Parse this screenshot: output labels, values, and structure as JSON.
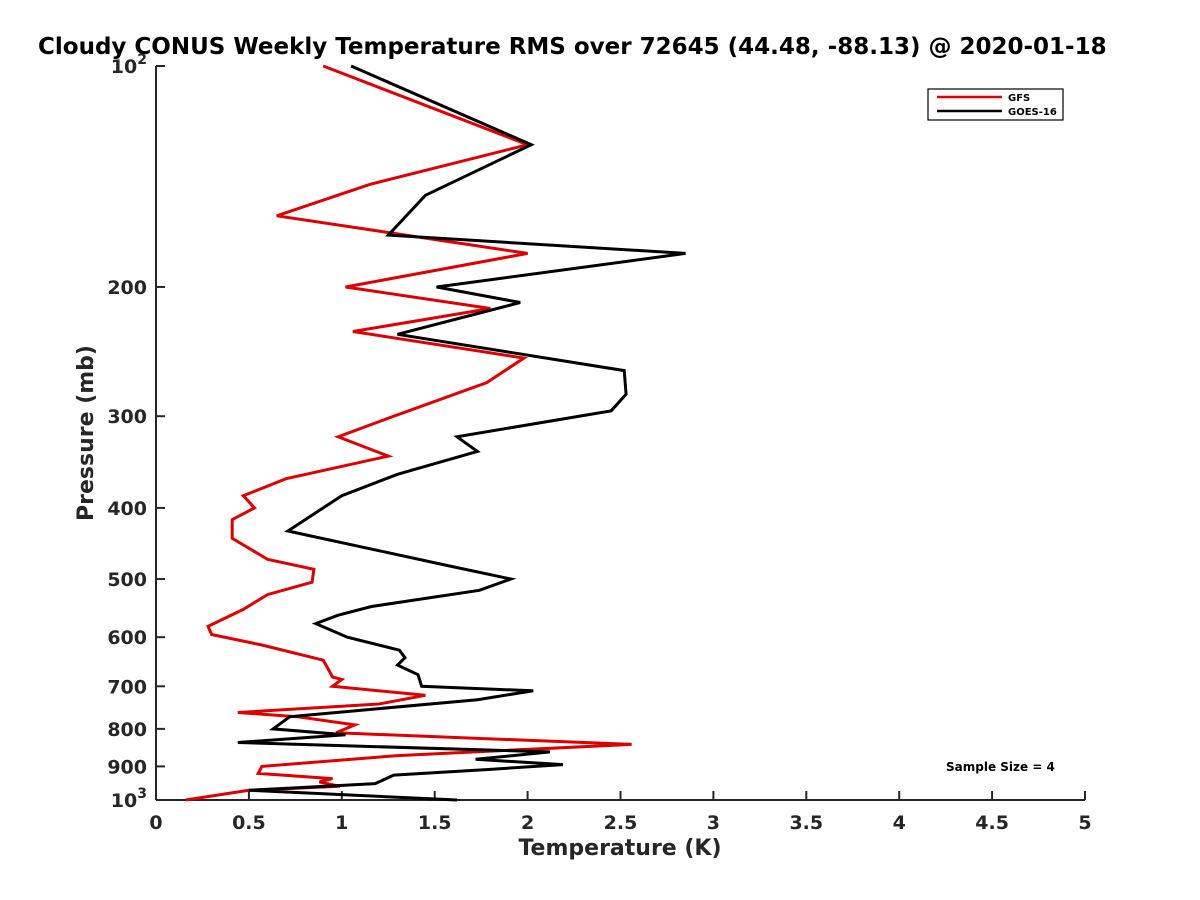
{
  "chart_data": {
    "type": "line",
    "title": "Cloudy CONUS Weekly Temperature RMS over 72645 (44.48, -88.13) @ 2020-01-18",
    "xlabel": "Temperature (K)",
    "ylabel": "Pressure (mb)",
    "xlim": [
      0,
      5
    ],
    "ylim": [
      100,
      1000
    ],
    "y_scale": "log",
    "y_reversed": true,
    "grid": false,
    "legend_position": "top-right",
    "x_ticks": [
      "0",
      "0.5",
      "1",
      "1.5",
      "2",
      "2.5",
      "3",
      "3.5",
      "4",
      "4.5",
      "5"
    ],
    "y_ticks": [
      {
        "value": 100,
        "base": "10",
        "exp": "2"
      },
      {
        "value": 200,
        "label": "200"
      },
      {
        "value": 300,
        "label": "300"
      },
      {
        "value": 400,
        "label": "400"
      },
      {
        "value": 500,
        "label": "500"
      },
      {
        "value": 600,
        "label": "600"
      },
      {
        "value": 700,
        "label": "700"
      },
      {
        "value": 800,
        "label": "800"
      },
      {
        "value": 900,
        "label": "900"
      },
      {
        "value": 1000,
        "base": "10",
        "exp": "3"
      }
    ],
    "annotation": "Sample Size = 4",
    "series": [
      {
        "name": "GFS",
        "color": "#dd0000",
        "x": [
          0.9,
          2.0,
          1.15,
          0.65,
          2.0,
          1.02,
          1.8,
          1.06,
          1.98,
          1.78,
          1.28,
          0.98,
          1.25,
          0.7,
          0.47,
          0.53,
          0.41,
          0.41,
          0.6,
          0.85,
          0.84,
          0.6,
          0.47,
          0.28,
          0.3,
          0.57,
          0.9,
          0.93,
          0.95,
          1.0,
          0.95,
          1.45,
          1.2,
          0.44,
          0.76,
          1.07,
          0.97,
          2.56,
          1.3,
          0.57,
          0.55,
          0.95,
          0.88,
          0.99,
          0.5,
          0.16
        ],
        "y": [
          100,
          128,
          145,
          160,
          180,
          200,
          214,
          230,
          250,
          270,
          300,
          320,
          340,
          365,
          385,
          400,
          415,
          440,
          470,
          485,
          505,
          525,
          550,
          580,
          595,
          615,
          645,
          665,
          680,
          685,
          700,
          720,
          740,
          760,
          770,
          790,
          810,
          840,
          870,
          900,
          920,
          935,
          945,
          958,
          970,
          1000
        ]
      },
      {
        "name": "GOES-16",
        "color": "#000000",
        "x": [
          1.05,
          2.02,
          1.45,
          1.25,
          2.85,
          1.51,
          1.96,
          1.3,
          2.52,
          2.53,
          2.45,
          1.62,
          1.73,
          1.3,
          1.0,
          0.71,
          1.58,
          1.91,
          1.74,
          1.16,
          0.98,
          0.86,
          1.03,
          1.31,
          1.34,
          1.3,
          1.41,
          1.43,
          2.03,
          1.73,
          0.72,
          0.63,
          1.02,
          0.44,
          2.12,
          1.72,
          2.19,
          1.81,
          1.28,
          1.18,
          0.5,
          1.62
        ],
        "y": [
          100,
          128,
          150,
          170,
          180,
          200,
          210,
          232,
          260,
          280,
          295,
          320,
          335,
          360,
          385,
          430,
          480,
          500,
          518,
          545,
          560,
          575,
          600,
          625,
          640,
          655,
          675,
          700,
          710,
          730,
          770,
          800,
          815,
          835,
          860,
          880,
          895,
          908,
          925,
          950,
          970,
          1000
        ]
      }
    ]
  }
}
